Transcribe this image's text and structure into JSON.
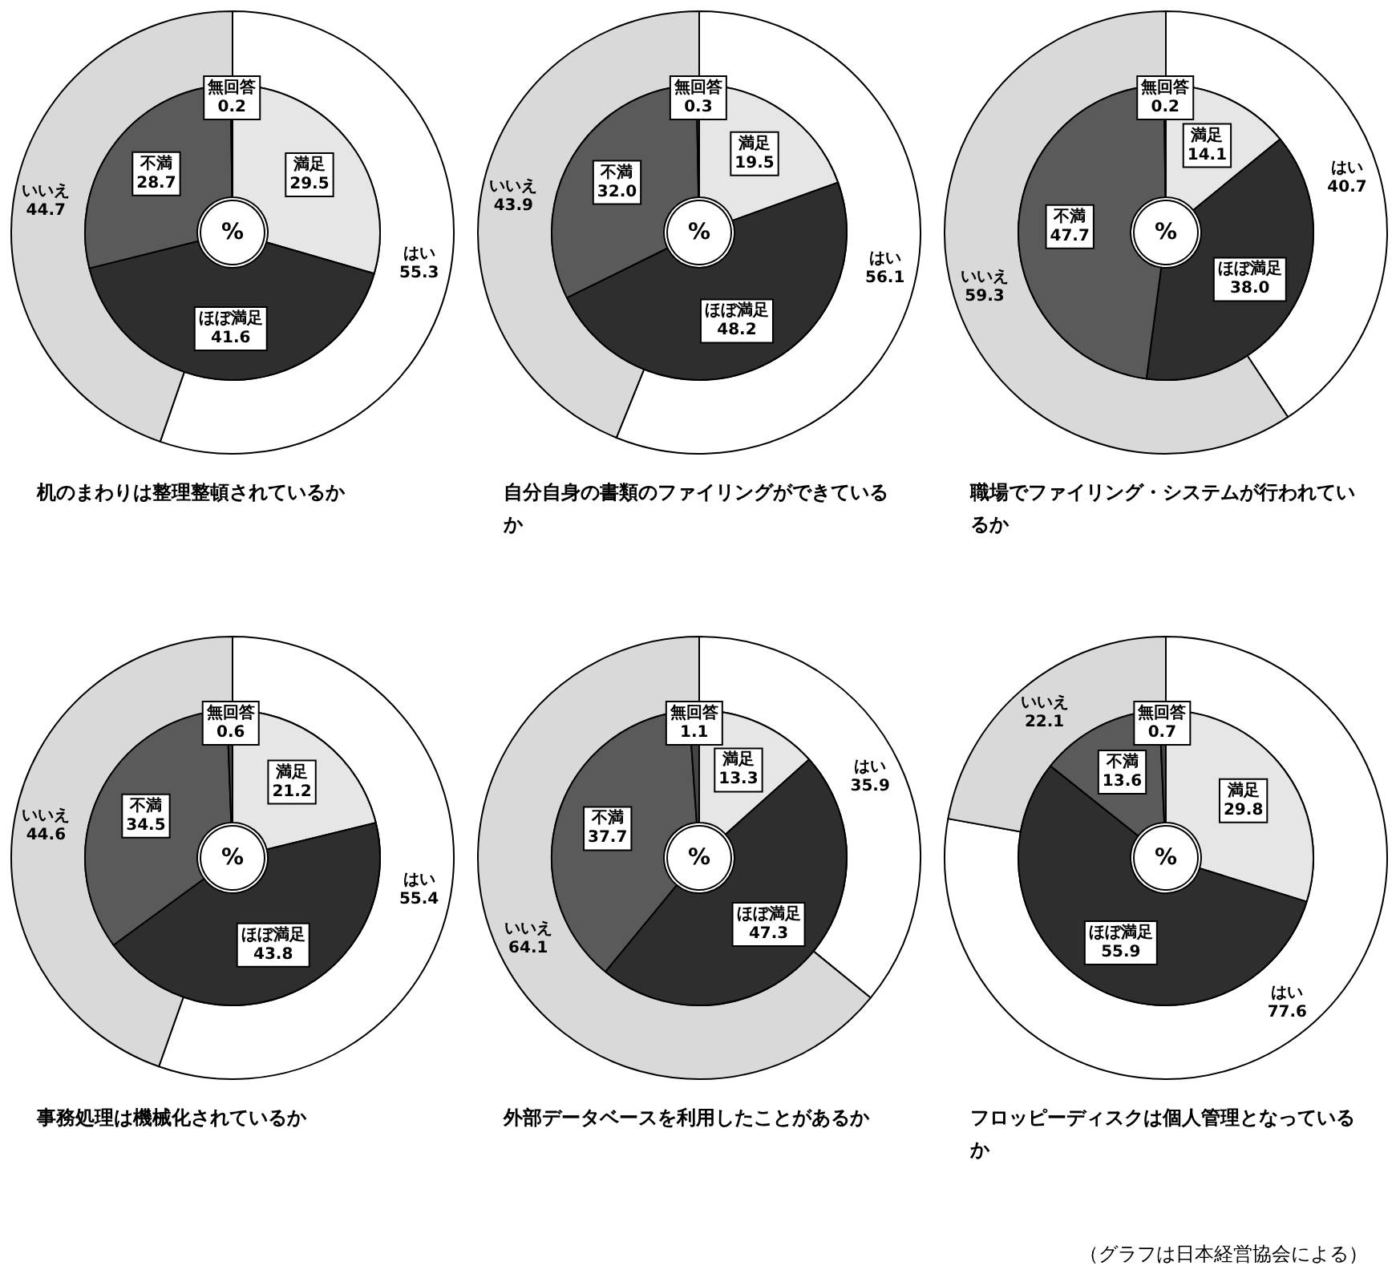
{
  "chart_data": [
    {
      "type": "donut",
      "title": "机のまわりは整理整頓されているか",
      "categories": [
        "はい",
        "いいえ"
      ],
      "values": [
        55.3,
        44.7
      ],
      "value_labels": [
        "55.3",
        "44.7"
      ],
      "colors": [
        "#ffffff",
        "#d9d9d9"
      ]
    },
    {
      "type": "donut",
      "annotations": [
        "%"
      ],
      "categories": [
        "満足",
        "ほぼ満足",
        "不満",
        "無回答"
      ],
      "values": [
        29.5,
        41.6,
        28.7,
        0.2
      ],
      "value_labels": [
        "29.5",
        "41.6",
        "28.7",
        "0.2"
      ],
      "colors": [
        "#e6e6e6",
        "#2e2e2e",
        "#5a5a5a",
        "#444444"
      ]
    },
    {
      "type": "donut",
      "title": "自分自身の書類のファイリングができているか",
      "categories": [
        "はい",
        "いいえ"
      ],
      "values": [
        56.1,
        43.9
      ],
      "value_labels": [
        "56.1",
        "43.9"
      ],
      "colors": [
        "#ffffff",
        "#d9d9d9"
      ]
    },
    {
      "type": "donut",
      "annotations": [
        "%"
      ],
      "categories": [
        "満足",
        "ほぼ満足",
        "不満",
        "無回答"
      ],
      "values": [
        19.5,
        48.2,
        32.0,
        0.3
      ],
      "value_labels": [
        "19.5",
        "48.2",
        "32.0",
        "0.3"
      ],
      "colors": [
        "#e6e6e6",
        "#2e2e2e",
        "#5a5a5a",
        "#444444"
      ]
    },
    {
      "type": "donut",
      "title": "職場でファイリング・システムが行われているか",
      "categories": [
        "はい",
        "いいえ"
      ],
      "values": [
        40.7,
        59.3
      ],
      "value_labels": [
        "40.7",
        "59.3"
      ],
      "colors": [
        "#ffffff",
        "#d9d9d9"
      ]
    },
    {
      "type": "donut",
      "annotations": [
        "%"
      ],
      "categories": [
        "満足",
        "ほぼ満足",
        "不満",
        "無回答"
      ],
      "values": [
        14.1,
        38.0,
        47.7,
        0.2
      ],
      "value_labels": [
        "14.1",
        "38.0",
        "47.7",
        "0.2"
      ],
      "colors": [
        "#e6e6e6",
        "#2e2e2e",
        "#5a5a5a",
        "#444444"
      ]
    },
    {
      "type": "donut",
      "title": "事務処理は機械化されているか",
      "categories": [
        "はい",
        "いいえ"
      ],
      "values": [
        55.4,
        44.6
      ],
      "value_labels": [
        "55.4",
        "44.6"
      ],
      "colors": [
        "#ffffff",
        "#d9d9d9"
      ]
    },
    {
      "type": "donut",
      "annotations": [
        "%"
      ],
      "categories": [
        "満足",
        "ほぼ満足",
        "不満",
        "無回答"
      ],
      "values": [
        21.2,
        43.8,
        34.5,
        0.6
      ],
      "value_labels": [
        "21.2",
        "43.8",
        "34.5",
        "0.6"
      ],
      "colors": [
        "#e6e6e6",
        "#2e2e2e",
        "#5a5a5a",
        "#444444"
      ]
    },
    {
      "type": "donut",
      "title": "外部データベースを利用したことがあるか",
      "categories": [
        "はい",
        "いいえ"
      ],
      "values": [
        35.9,
        64.1
      ],
      "value_labels": [
        "35.9",
        "64.1"
      ],
      "colors": [
        "#ffffff",
        "#d9d9d9"
      ]
    },
    {
      "type": "donut",
      "annotations": [
        "%"
      ],
      "categories": [
        "満足",
        "ほぼ満足",
        "不満",
        "無回答"
      ],
      "values": [
        13.3,
        47.3,
        37.7,
        1.1
      ],
      "value_labels": [
        "13.3",
        "47.3",
        "37.7",
        "1.1"
      ],
      "colors": [
        "#e6e6e6",
        "#2e2e2e",
        "#5a5a5a",
        "#444444"
      ]
    },
    {
      "type": "donut",
      "title": "フロッピーディスクは個人管理となっているか",
      "annotations": [
        "（グラフは日本経営協会による）"
      ],
      "categories": [
        "はい",
        "いいえ"
      ],
      "values": [
        77.6,
        22.1
      ],
      "value_labels": [
        "77.6",
        "22.1"
      ],
      "colors": [
        "#ffffff",
        "#d9d9d9"
      ]
    },
    {
      "type": "donut",
      "annotations": [
        "%"
      ],
      "categories": [
        "満足",
        "ほぼ満足",
        "不満",
        "無回答"
      ],
      "values": [
        29.8,
        55.9,
        13.6,
        0.7
      ],
      "value_labels": [
        "29.8",
        "55.9",
        "13.6",
        "0.7"
      ],
      "colors": [
        "#e6e6e6",
        "#2e2e2e",
        "#5a5a5a",
        "#444444"
      ]
    }
  ]
}
